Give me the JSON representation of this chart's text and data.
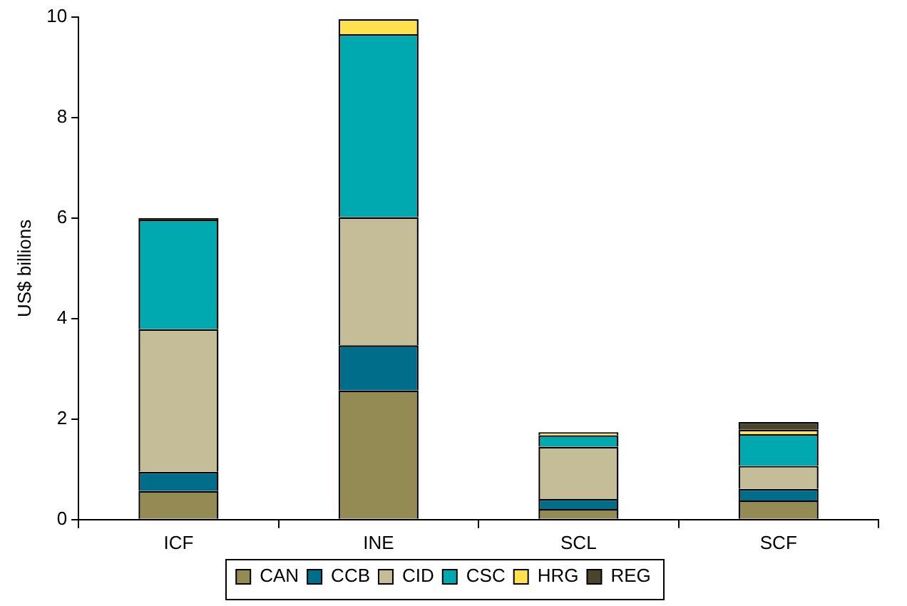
{
  "chart_data": {
    "type": "bar",
    "stacked": true,
    "ylabel": "US$ billions",
    "categories": [
      "ICF",
      "INE",
      "SCL",
      "SCF"
    ],
    "series": [
      {
        "name": "CAN",
        "color": "#948a54",
        "values": [
          0.57,
          2.57,
          0.21,
          0.38
        ]
      },
      {
        "name": "CCB",
        "color": "#006e8a",
        "values": [
          0.38,
          0.9,
          0.2,
          0.23
        ]
      },
      {
        "name": "CID",
        "color": "#c4bd97",
        "values": [
          2.84,
          2.55,
          1.04,
          0.46
        ]
      },
      {
        "name": "CSC",
        "color": "#00a8b0",
        "values": [
          2.18,
          3.64,
          0.23,
          0.63
        ]
      },
      {
        "name": "HRG",
        "color": "#ffe14f",
        "values": [
          null,
          0.3,
          0.06,
          0.09
        ]
      },
      {
        "name": "REG",
        "color": "#4a452a",
        "values": [
          0.03,
          null,
          null,
          0.15
        ]
      }
    ],
    "ylim": [
      0,
      10
    ],
    "yticks": [
      0,
      2,
      4,
      6,
      8,
      10
    ],
    "grid": false,
    "legend": "bottom"
  }
}
